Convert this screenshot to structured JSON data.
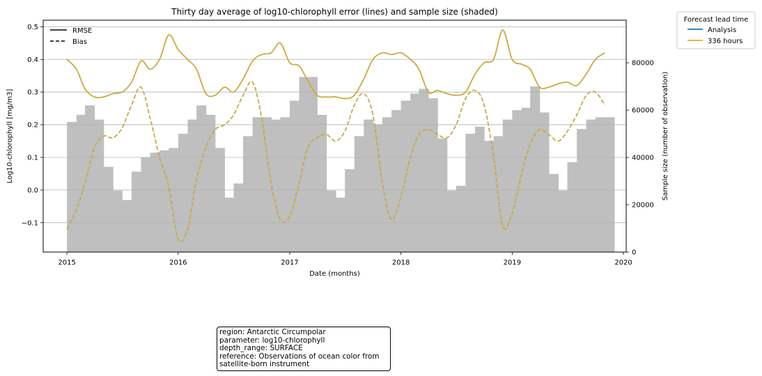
{
  "chart_data": {
    "type": "line",
    "title": "Thirty day average of log10-chlorophyll error (lines) and sample size (shaded)",
    "xlabel": "Date (months)",
    "ylabel": "Log10-chlorophyll [mg/m3]",
    "y2label": "Sample size (number of observation)",
    "xlim": [
      "2014-10-15",
      "2020-01-10"
    ],
    "ylim": [
      -0.19,
      0.52
    ],
    "y2lim": [
      0,
      98000
    ],
    "x_ticks": [
      "2015",
      "2016",
      "2017",
      "2018",
      "2019",
      "2020"
    ],
    "y_ticks": [
      -0.1,
      0.0,
      0.1,
      0.2,
      0.3,
      0.4,
      0.5
    ],
    "y_tick_labels": [
      "−0.1",
      "0.0",
      "0.1",
      "0.2",
      "0.3",
      "0.4",
      "0.5"
    ],
    "y2_ticks": [
      0,
      20000,
      40000,
      60000,
      80000
    ],
    "grid": "horizontal",
    "style_legend": {
      "placement": "top-left",
      "entries": [
        {
          "label": "RMSE",
          "dash": "solid"
        },
        {
          "label": "Bias",
          "dash": "dashed"
        }
      ]
    },
    "series_legend": {
      "title": "Forecast lead time",
      "placement": "outside-right",
      "entries": [
        {
          "label": "Analysis",
          "color": "#1f77b4"
        },
        {
          "label": "336 hours",
          "color": "#dbad2e"
        }
      ]
    },
    "sample_size": {
      "color": "#bfbfbf",
      "x": [
        "2015-01-01",
        "2015-02-01",
        "2015-03-01",
        "2015-04-01",
        "2015-05-01",
        "2015-06-01",
        "2015-07-01",
        "2015-08-01",
        "2015-09-01",
        "2015-10-01",
        "2015-11-01",
        "2015-12-01",
        "2016-01-01",
        "2016-02-01",
        "2016-03-01",
        "2016-04-01",
        "2016-05-01",
        "2016-06-01",
        "2016-07-01",
        "2016-08-01",
        "2016-09-01",
        "2016-10-01",
        "2016-11-01",
        "2016-12-01",
        "2017-01-01",
        "2017-02-01",
        "2017-03-01",
        "2017-04-01",
        "2017-05-01",
        "2017-06-01",
        "2017-07-01",
        "2017-08-01",
        "2017-09-01",
        "2017-10-01",
        "2017-11-01",
        "2017-12-01",
        "2018-01-01",
        "2018-02-01",
        "2018-03-01",
        "2018-04-01",
        "2018-05-01",
        "2018-06-01",
        "2018-07-01",
        "2018-08-01",
        "2018-09-01",
        "2018-10-01",
        "2018-11-01",
        "2018-12-01",
        "2019-01-01",
        "2019-02-01",
        "2019-03-01",
        "2019-04-01",
        "2019-05-01",
        "2019-06-01",
        "2019-07-01",
        "2019-08-01",
        "2019-09-01",
        "2019-10-01",
        "2019-11-01"
      ],
      "values": [
        55000,
        58000,
        62000,
        56000,
        36000,
        26000,
        22000,
        34000,
        40000,
        42000,
        43000,
        44000,
        50000,
        56000,
        62000,
        58000,
        44000,
        23000,
        29000,
        49000,
        57000,
        57000,
        56000,
        57000,
        64000,
        74000,
        74000,
        58000,
        26000,
        23000,
        35000,
        49000,
        56000,
        54000,
        57000,
        60000,
        64000,
        67000,
        69000,
        65000,
        48000,
        26000,
        28000,
        50000,
        53000,
        47000,
        49000,
        56000,
        60000,
        61000,
        70000,
        59000,
        33000,
        26000,
        38000,
        52000,
        56000,
        57000,
        57000
      ]
    },
    "series": [
      {
        "name": "Analysis",
        "metric": "RMSE",
        "color": "#1f77b4",
        "x": [
          "2015-01-01",
          "2015-02-01",
          "2015-03-01",
          "2015-04-01",
          "2015-05-01",
          "2015-06-01",
          "2015-07-01",
          "2015-08-01",
          "2015-09-01",
          "2015-10-01",
          "2015-11-01",
          "2015-12-01",
          "2016-01-01",
          "2016-02-01",
          "2016-03-01",
          "2016-04-01",
          "2016-05-01",
          "2016-06-01",
          "2016-07-01",
          "2016-08-01",
          "2016-09-01",
          "2016-10-01",
          "2016-11-01",
          "2016-12-01",
          "2017-01-01",
          "2017-02-01",
          "2017-03-01",
          "2017-04-01",
          "2017-05-01",
          "2017-06-01",
          "2017-07-01",
          "2017-08-01",
          "2017-09-01",
          "2017-10-01",
          "2017-11-01",
          "2017-12-01",
          "2018-01-01",
          "2018-02-01",
          "2018-03-01",
          "2018-04-01",
          "2018-05-01",
          "2018-06-01",
          "2018-07-01",
          "2018-08-01",
          "2018-09-01",
          "2018-10-01",
          "2018-11-01",
          "2018-12-01",
          "2019-01-01",
          "2019-02-01",
          "2019-03-01",
          "2019-04-01",
          "2019-05-01",
          "2019-06-01",
          "2019-07-01",
          "2019-08-01",
          "2019-09-01",
          "2019-10-01",
          "2019-11-01"
        ],
        "values": [
          0.4,
          0.37,
          0.31,
          0.285,
          0.285,
          0.295,
          0.3,
          0.33,
          0.395,
          0.37,
          0.4,
          0.475,
          0.43,
          0.4,
          0.37,
          0.295,
          0.29,
          0.315,
          0.3,
          0.34,
          0.395,
          0.415,
          0.42,
          0.45,
          0.39,
          0.38,
          0.335,
          0.29,
          0.285,
          0.285,
          0.28,
          0.29,
          0.34,
          0.4,
          0.42,
          0.415,
          0.42,
          0.4,
          0.37,
          0.3,
          0.305,
          0.295,
          0.29,
          0.3,
          0.355,
          0.39,
          0.4,
          0.49,
          0.4,
          0.385,
          0.37,
          0.315,
          0.315,
          0.325,
          0.33,
          0.32,
          0.355,
          0.4,
          0.42
        ]
      },
      {
        "name": "Analysis",
        "metric": "Bias",
        "color": "#1f77b4",
        "x": [
          "2015-01-01",
          "2015-02-01",
          "2015-03-01",
          "2015-04-01",
          "2015-05-01",
          "2015-06-01",
          "2015-07-01",
          "2015-08-01",
          "2015-09-01",
          "2015-10-01",
          "2015-11-01",
          "2015-12-01",
          "2016-01-01",
          "2016-02-01",
          "2016-03-01",
          "2016-04-01",
          "2016-05-01",
          "2016-06-01",
          "2016-07-01",
          "2016-08-01",
          "2016-09-01",
          "2016-10-01",
          "2016-11-01",
          "2016-12-01",
          "2017-01-01",
          "2017-02-01",
          "2017-03-01",
          "2017-04-01",
          "2017-05-01",
          "2017-06-01",
          "2017-07-01",
          "2017-08-01",
          "2017-09-01",
          "2017-10-01",
          "2017-11-01",
          "2017-12-01",
          "2018-01-01",
          "2018-02-01",
          "2018-03-01",
          "2018-04-01",
          "2018-05-01",
          "2018-06-01",
          "2018-07-01",
          "2018-08-01",
          "2018-09-01",
          "2018-10-01",
          "2018-11-01",
          "2018-12-01",
          "2019-01-01",
          "2019-02-01",
          "2019-03-01",
          "2019-04-01",
          "2019-05-01",
          "2019-06-01",
          "2019-07-01",
          "2019-08-01",
          "2019-09-01",
          "2019-10-01",
          "2019-11-01"
        ],
        "values": [
          -0.12,
          -0.06,
          0.02,
          0.13,
          0.165,
          0.16,
          0.19,
          0.26,
          0.315,
          0.22,
          0.1,
          0.01,
          -0.15,
          -0.12,
          0.03,
          0.13,
          0.185,
          0.2,
          0.23,
          0.29,
          0.33,
          0.22,
          0.02,
          -0.09,
          -0.08,
          0.02,
          0.13,
          0.16,
          0.17,
          0.15,
          0.18,
          0.26,
          0.295,
          0.23,
          0.02,
          -0.09,
          -0.02,
          0.1,
          0.17,
          0.185,
          0.17,
          0.16,
          0.2,
          0.28,
          0.305,
          0.26,
          0.1,
          -0.11,
          -0.07,
          0.05,
          0.14,
          0.185,
          0.17,
          0.15,
          0.18,
          0.23,
          0.29,
          0.3,
          0.26
        ]
      },
      {
        "name": "336 hours",
        "metric": "RMSE",
        "color": "#dbad2e",
        "x": [
          "2015-01-01",
          "2015-02-01",
          "2015-03-01",
          "2015-04-01",
          "2015-05-01",
          "2015-06-01",
          "2015-07-01",
          "2015-08-01",
          "2015-09-01",
          "2015-10-01",
          "2015-11-01",
          "2015-12-01",
          "2016-01-01",
          "2016-02-01",
          "2016-03-01",
          "2016-04-01",
          "2016-05-01",
          "2016-06-01",
          "2016-07-01",
          "2016-08-01",
          "2016-09-01",
          "2016-10-01",
          "2016-11-01",
          "2016-12-01",
          "2017-01-01",
          "2017-02-01",
          "2017-03-01",
          "2017-04-01",
          "2017-05-01",
          "2017-06-01",
          "2017-07-01",
          "2017-08-01",
          "2017-09-01",
          "2017-10-01",
          "2017-11-01",
          "2017-12-01",
          "2018-01-01",
          "2018-02-01",
          "2018-03-01",
          "2018-04-01",
          "2018-05-01",
          "2018-06-01",
          "2018-07-01",
          "2018-08-01",
          "2018-09-01",
          "2018-10-01",
          "2018-11-01",
          "2018-12-01",
          "2019-01-01",
          "2019-02-01",
          "2019-03-01",
          "2019-04-01",
          "2019-05-01",
          "2019-06-01",
          "2019-07-01",
          "2019-08-01",
          "2019-09-01",
          "2019-10-01",
          "2019-11-01"
        ],
        "values": [
          0.4,
          0.37,
          0.31,
          0.285,
          0.285,
          0.295,
          0.3,
          0.33,
          0.395,
          0.37,
          0.4,
          0.475,
          0.43,
          0.4,
          0.37,
          0.295,
          0.29,
          0.315,
          0.3,
          0.34,
          0.395,
          0.415,
          0.42,
          0.45,
          0.39,
          0.38,
          0.335,
          0.29,
          0.285,
          0.285,
          0.28,
          0.29,
          0.34,
          0.4,
          0.42,
          0.415,
          0.42,
          0.4,
          0.37,
          0.3,
          0.305,
          0.295,
          0.29,
          0.3,
          0.355,
          0.39,
          0.4,
          0.49,
          0.4,
          0.385,
          0.37,
          0.315,
          0.315,
          0.325,
          0.33,
          0.32,
          0.355,
          0.4,
          0.42
        ]
      },
      {
        "name": "336 hours",
        "metric": "Bias",
        "color": "#dbad2e",
        "x": [
          "2015-01-01",
          "2015-02-01",
          "2015-03-01",
          "2015-04-01",
          "2015-05-01",
          "2015-06-01",
          "2015-07-01",
          "2015-08-01",
          "2015-09-01",
          "2015-10-01",
          "2015-11-01",
          "2015-12-01",
          "2016-01-01",
          "2016-02-01",
          "2016-03-01",
          "2016-04-01",
          "2016-05-01",
          "2016-06-01",
          "2016-07-01",
          "2016-08-01",
          "2016-09-01",
          "2016-10-01",
          "2016-11-01",
          "2016-12-01",
          "2017-01-01",
          "2017-02-01",
          "2017-03-01",
          "2017-04-01",
          "2017-05-01",
          "2017-06-01",
          "2017-07-01",
          "2017-08-01",
          "2017-09-01",
          "2017-10-01",
          "2017-11-01",
          "2017-12-01",
          "2018-01-01",
          "2018-02-01",
          "2018-03-01",
          "2018-04-01",
          "2018-05-01",
          "2018-06-01",
          "2018-07-01",
          "2018-08-01",
          "2018-09-01",
          "2018-10-01",
          "2018-11-01",
          "2018-12-01",
          "2019-01-01",
          "2019-02-01",
          "2019-03-01",
          "2019-04-01",
          "2019-05-01",
          "2019-06-01",
          "2019-07-01",
          "2019-08-01",
          "2019-09-01",
          "2019-10-01",
          "2019-11-01"
        ],
        "values": [
          -0.12,
          -0.06,
          0.02,
          0.13,
          0.165,
          0.16,
          0.19,
          0.26,
          0.315,
          0.22,
          0.1,
          0.01,
          -0.15,
          -0.12,
          0.03,
          0.13,
          0.185,
          0.2,
          0.23,
          0.29,
          0.33,
          0.22,
          0.02,
          -0.09,
          -0.08,
          0.02,
          0.13,
          0.16,
          0.17,
          0.15,
          0.18,
          0.26,
          0.295,
          0.23,
          0.02,
          -0.09,
          -0.02,
          0.1,
          0.17,
          0.185,
          0.17,
          0.16,
          0.2,
          0.28,
          0.305,
          0.26,
          0.1,
          -0.11,
          -0.07,
          0.05,
          0.14,
          0.185,
          0.17,
          0.15,
          0.18,
          0.23,
          0.29,
          0.3,
          0.26
        ]
      }
    ]
  },
  "info_box": {
    "lines": [
      "region: Antarctic Circumpolar",
      "parameter: log10-chlorophyll",
      "depth_range: SURFACE",
      "reference: Observations of ocean color from",
      "satellite-born instrument"
    ]
  }
}
